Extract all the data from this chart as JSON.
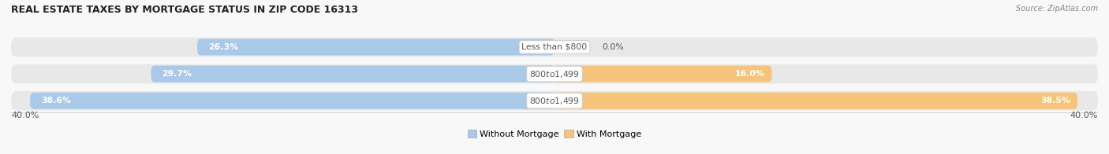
{
  "title": "REAL ESTATE TAXES BY MORTGAGE STATUS IN ZIP CODE 16313",
  "source": "Source: ZipAtlas.com",
  "rows": [
    {
      "label": "Less than $800",
      "without_pct": 26.3,
      "with_pct": 0.0
    },
    {
      "label": "$800 to $1,499",
      "without_pct": 29.7,
      "with_pct": 16.0
    },
    {
      "label": "$800 to $1,499",
      "without_pct": 38.6,
      "with_pct": 38.5
    }
  ],
  "x_max": 40.0,
  "x_axis_label_left": "40.0%",
  "x_axis_label_right": "40.0%",
  "bar_color_without": "#aac9e8",
  "bar_color_with": "#f5c47a",
  "label_text_color": "#555555",
  "bar_height": 0.62,
  "row_bg_color": "#e8e8e8",
  "title_color": "#222222",
  "source_color": "#888888",
  "legend_without": "Without Mortgage",
  "legend_with": "With Mortgage",
  "fig_bg_color": "#f8f8f8",
  "pct_label_color_inside": "#ffffff",
  "pct_label_color_outside": "#555555"
}
